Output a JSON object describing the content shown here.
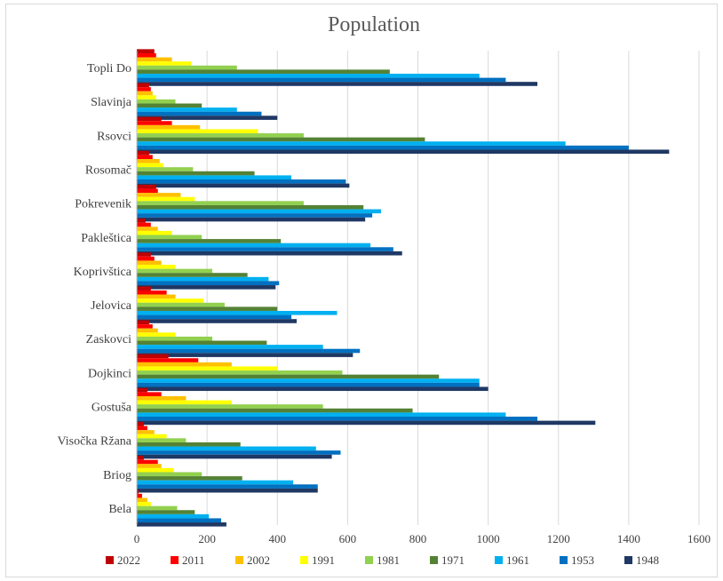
{
  "chart_data": {
    "type": "bar",
    "orientation": "horizontal",
    "title": "Population",
    "xlabel": "",
    "ylabel": "",
    "xlim": [
      0,
      1600
    ],
    "ticks": [
      0,
      200,
      400,
      600,
      800,
      1000,
      1200,
      1400,
      1600
    ],
    "grid": true,
    "legend_position": "bottom",
    "categories": [
      "Topli Do",
      "Slavinja",
      "Rsovci",
      "Rosomač",
      "Pokrevenik",
      "Pakleštica",
      "Koprivštica",
      "Jelovica",
      "Zaskovci",
      "Dojkinci",
      "Gostuša",
      "Visočka Ržana",
      "Briog",
      "Bela"
    ],
    "series": [
      {
        "name": "2022",
        "color": "#c00000",
        "values": [
          50,
          35,
          70,
          35,
          55,
          25,
          40,
          40,
          35,
          90,
          30,
          20,
          20,
          5
        ]
      },
      {
        "name": "2011",
        "color": "#ff0000",
        "values": [
          55,
          40,
          100,
          45,
          60,
          40,
          50,
          85,
          45,
          175,
          70,
          30,
          60,
          15
        ]
      },
      {
        "name": "2002",
        "color": "#ffc000",
        "values": [
          100,
          45,
          180,
          65,
          125,
          60,
          70,
          110,
          60,
          270,
          140,
          50,
          70,
          30
        ]
      },
      {
        "name": "1991",
        "color": "#ffff00",
        "values": [
          155,
          55,
          345,
          75,
          165,
          100,
          110,
          190,
          110,
          400,
          270,
          85,
          105,
          40
        ]
      },
      {
        "name": "1981",
        "color": "#92d050",
        "values": [
          285,
          110,
          475,
          160,
          475,
          185,
          215,
          250,
          215,
          585,
          530,
          140,
          185,
          115
        ]
      },
      {
        "name": "1971",
        "color": "#548235",
        "values": [
          720,
          185,
          820,
          335,
          645,
          410,
          315,
          400,
          370,
          860,
          785,
          295,
          300,
          165
        ]
      },
      {
        "name": "1961",
        "color": "#00b0f0",
        "values": [
          975,
          285,
          1220,
          440,
          695,
          665,
          375,
          570,
          530,
          975,
          1050,
          510,
          445,
          205
        ]
      },
      {
        "name": "1953",
        "color": "#0070c0",
        "values": [
          1050,
          355,
          1400,
          595,
          670,
          730,
          405,
          440,
          635,
          975,
          1140,
          580,
          515,
          240
        ]
      },
      {
        "name": "1948",
        "color": "#1f3864",
        "values": [
          1140,
          400,
          1515,
          605,
          650,
          755,
          395,
          455,
          615,
          1000,
          1305,
          555,
          515,
          255
        ]
      }
    ]
  }
}
